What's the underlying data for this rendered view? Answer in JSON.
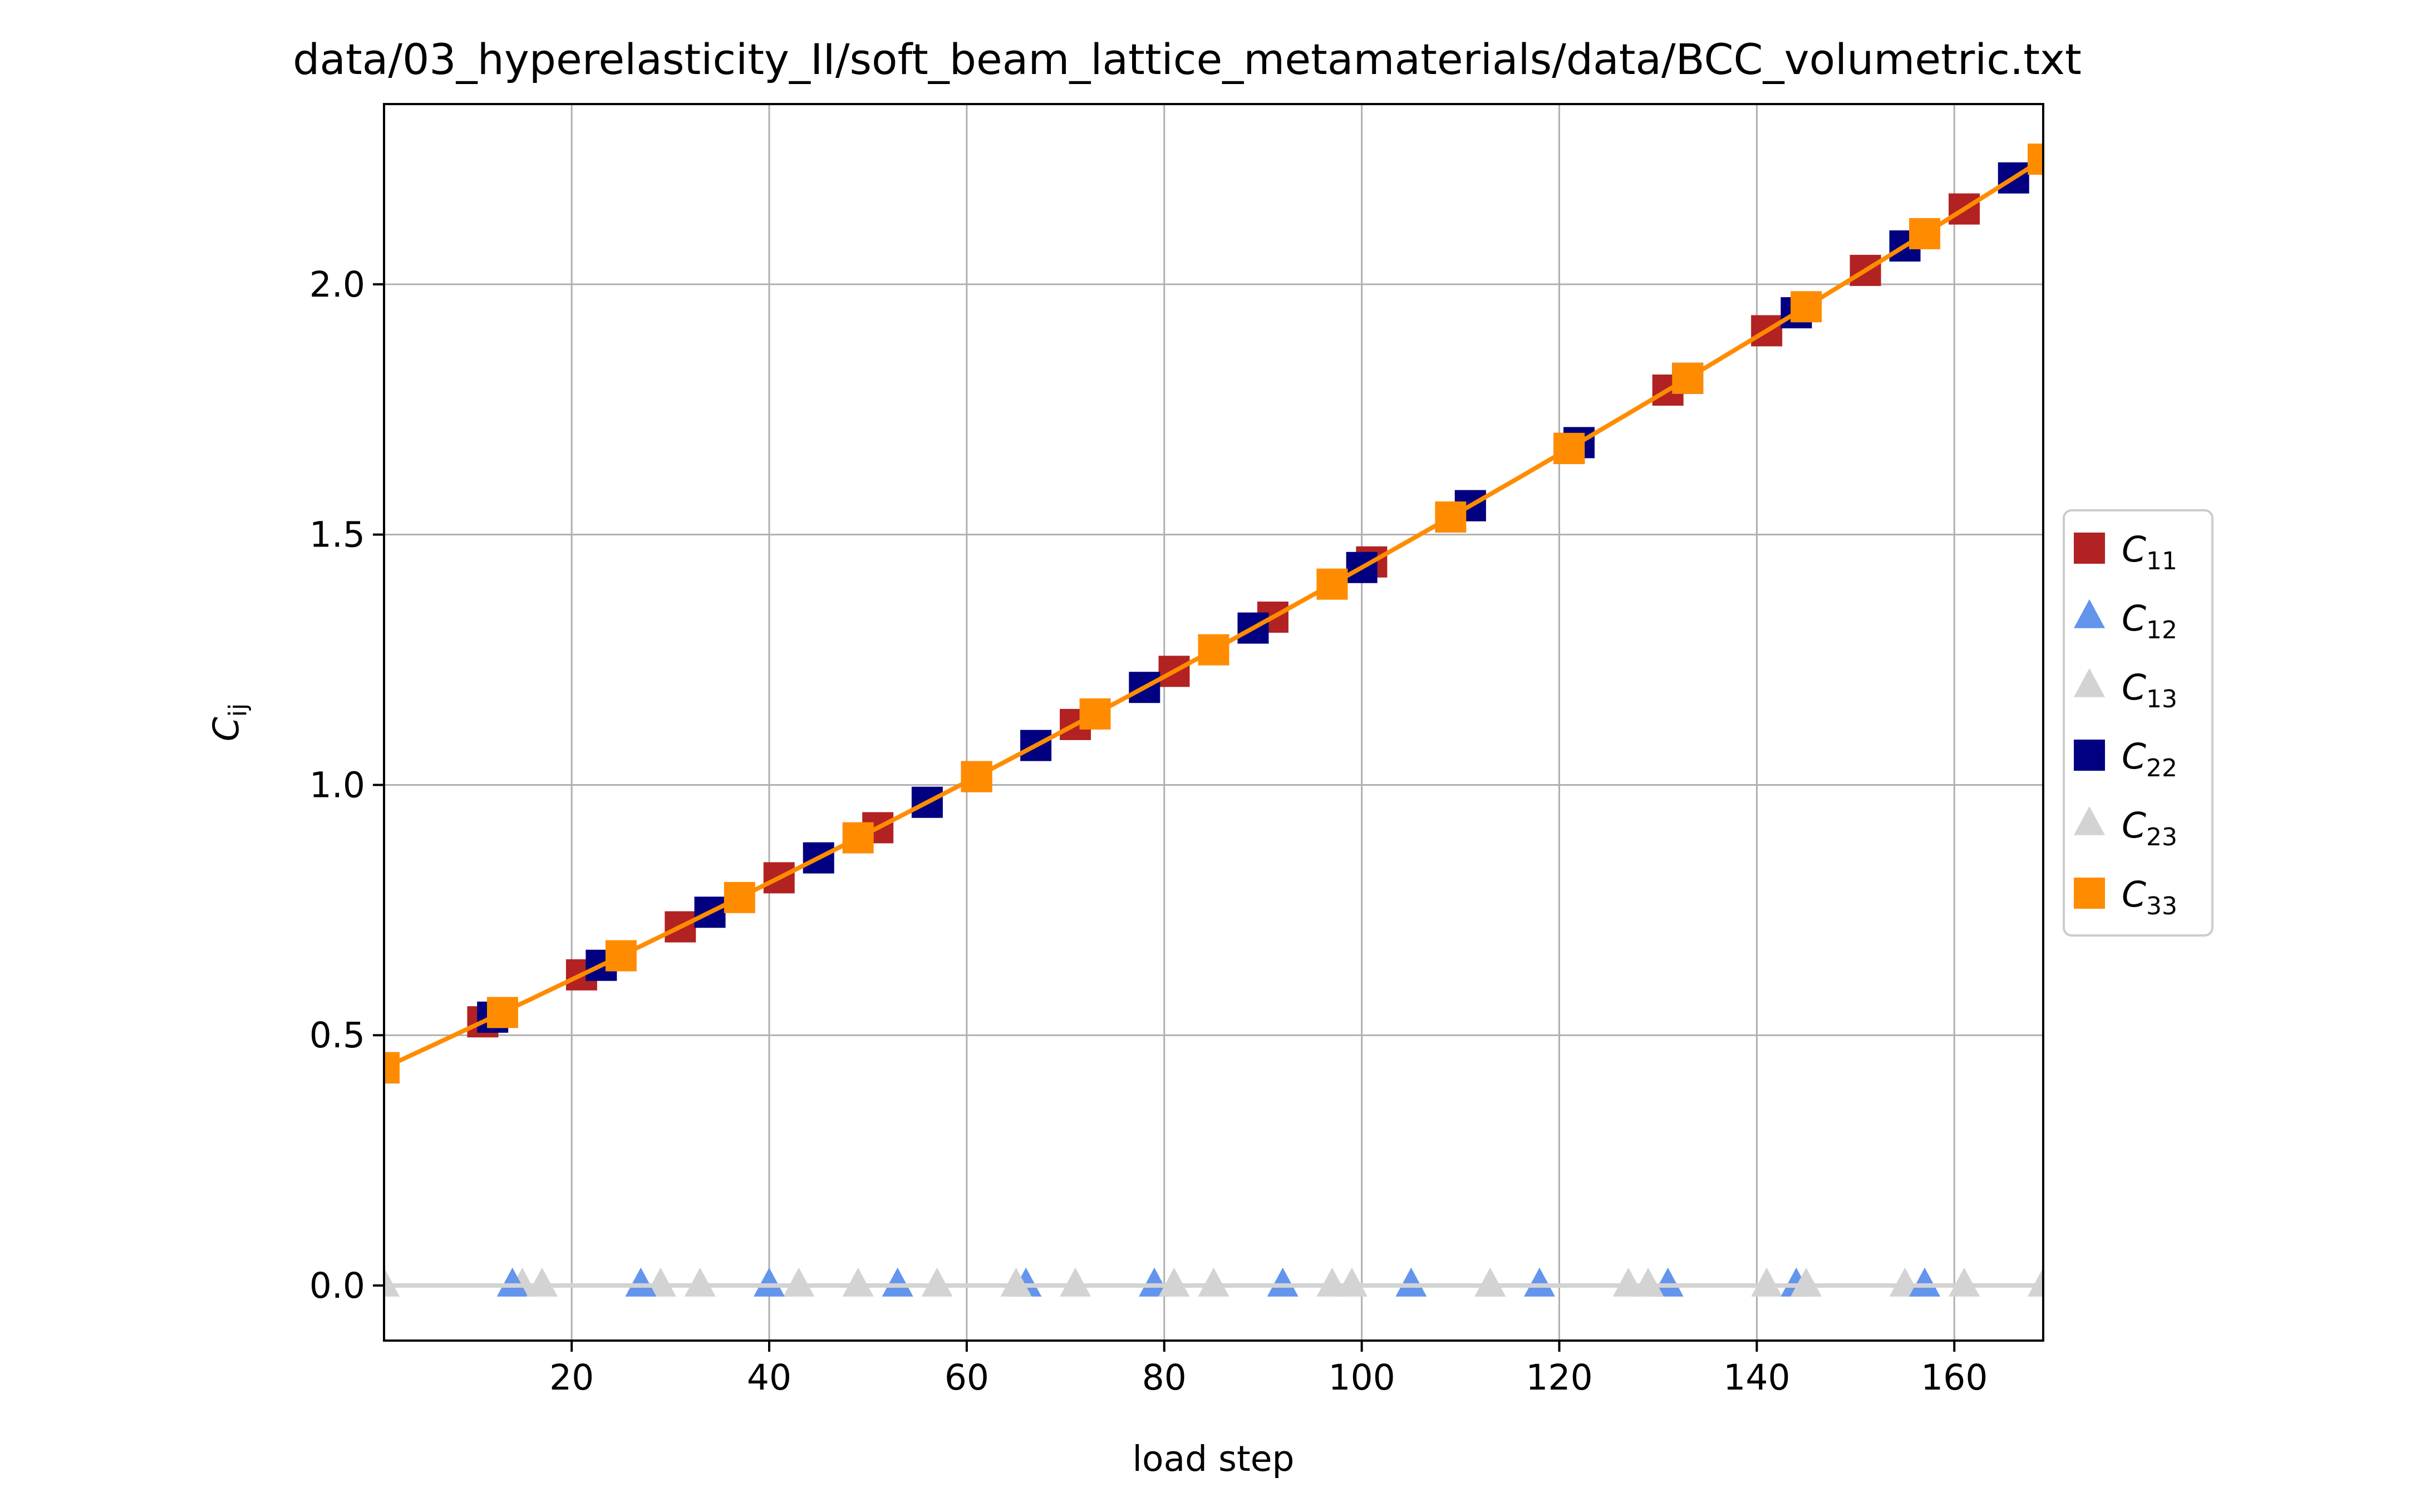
{
  "chart_data": {
    "type": "line",
    "title": "data/03_hyperelasticity_II/soft_beam_lattice_metamaterials/data/BCC_volumetric.txt",
    "xlabel": "load step",
    "ylabel": {
      "base": "C",
      "sub": "ij"
    },
    "xlim": [
      1,
      169
    ],
    "ylim": [
      -0.11,
      2.36
    ],
    "grid": true,
    "legend_position": "outside-right",
    "x_ticks": [
      {
        "value": 20,
        "label": "20"
      },
      {
        "value": 40,
        "label": "40"
      },
      {
        "value": 60,
        "label": "60"
      },
      {
        "value": 80,
        "label": "80"
      },
      {
        "value": 100,
        "label": "100"
      },
      {
        "value": 120,
        "label": "120"
      },
      {
        "value": 140,
        "label": "140"
      },
      {
        "value": 160,
        "label": "160"
      }
    ],
    "y_ticks": [
      {
        "value": 0.0,
        "label": "0.0"
      },
      {
        "value": 0.5,
        "label": "0.5"
      },
      {
        "value": 1.0,
        "label": "1.0"
      },
      {
        "value": 1.5,
        "label": "1.5"
      },
      {
        "value": 2.0,
        "label": "2.0"
      }
    ],
    "curve": {
      "x0": 1,
      "x1": 169,
      "y_start": 0.435,
      "y_end": 2.25,
      "shape": "mildly convex"
    },
    "series": [
      {
        "name": "C11",
        "base": "C",
        "sub": "11",
        "color": "#b22222",
        "marker": "square",
        "x": [
          11,
          21,
          31,
          41,
          51,
          61,
          71,
          81,
          91,
          101,
          111,
          121,
          131,
          141,
          151,
          161
        ],
        "y_source": "curve"
      },
      {
        "name": "C12",
        "base": "C",
        "sub": "12",
        "color": "#6495ed",
        "marker": "triangle",
        "x": [
          14,
          27,
          40,
          53,
          66,
          79,
          92,
          105,
          118,
          131,
          144,
          157
        ],
        "y_const": 0.0
      },
      {
        "name": "C13",
        "base": "C",
        "sub": "13",
        "color": "#d3d3d3",
        "marker": "triangle",
        "x": [
          1,
          15,
          29,
          43,
          57,
          71,
          85,
          99,
          113,
          127,
          141,
          155,
          169
        ],
        "y_const": 0.0
      },
      {
        "name": "C22",
        "base": "C",
        "sub": "22",
        "color": "#000080",
        "marker": "square",
        "x": [
          1,
          12,
          23,
          34,
          45,
          56,
          67,
          78,
          89,
          100,
          111,
          122,
          133,
          144,
          155,
          166
        ],
        "y_source": "curve"
      },
      {
        "name": "C23",
        "base": "C",
        "sub": "23",
        "color": "#d3d3d3",
        "marker": "triangle",
        "x": [
          1,
          17,
          33,
          49,
          65,
          81,
          97,
          113,
          129,
          145,
          161
        ],
        "y_const": 0.0
      },
      {
        "name": "C33",
        "base": "C",
        "sub": "33",
        "color": "#ff8c00",
        "marker": "square",
        "x": [
          1,
          13,
          25,
          37,
          49,
          61,
          73,
          85,
          97,
          109,
          121,
          133,
          145,
          157,
          169
        ],
        "y_source": "curve",
        "line": true
      }
    ]
  }
}
